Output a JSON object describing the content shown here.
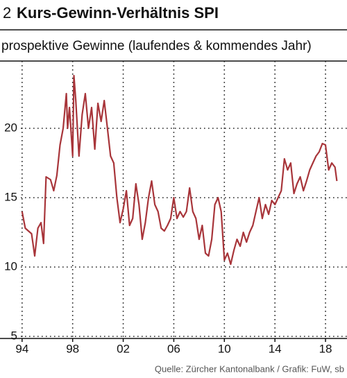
{
  "chart_data": {
    "type": "line",
    "number": "2",
    "title": "Kurs-Gewinn-Verhältnis SPI",
    "subtitle": "prospektive Gewinne (laufendes & kommendes Jahr)",
    "source": "Quelle: Zürcher Kantonalbank / Grafik: FuW, sb",
    "xlim": [
      1993.9,
      2019.7
    ],
    "ylim": [
      4.85,
      24.85
    ],
    "xticks": [
      {
        "value": 1994,
        "label": "94"
      },
      {
        "value": 1998,
        "label": "98"
      },
      {
        "value": 2002,
        "label": "02"
      },
      {
        "value": 2006,
        "label": "06"
      },
      {
        "value": 2010,
        "label": "10"
      },
      {
        "value": 2014,
        "label": "14"
      },
      {
        "value": 2018,
        "label": "18"
      }
    ],
    "yticks": [
      5,
      10,
      15,
      20
    ],
    "grid": true,
    "series": [
      {
        "color": "#a8353a",
        "x": [
          1994.0,
          1994.25,
          1994.5,
          1994.75,
          1995.0,
          1995.25,
          1995.5,
          1995.7,
          1995.9,
          1996.25,
          1996.5,
          1996.75,
          1997.0,
          1997.25,
          1997.5,
          1997.6,
          1997.75,
          1998.0,
          1998.1,
          1998.25,
          1998.5,
          1998.75,
          1999.0,
          1999.25,
          1999.5,
          1999.75,
          2000.0,
          2000.25,
          2000.5,
          2000.75,
          2001.0,
          2001.25,
          2001.5,
          2001.75,
          2002.0,
          2002.25,
          2002.5,
          2002.75,
          2003.0,
          2003.25,
          2003.5,
          2003.75,
          2004.0,
          2004.25,
          2004.5,
          2004.75,
          2005.0,
          2005.25,
          2005.5,
          2005.75,
          2006.0,
          2006.25,
          2006.5,
          2006.75,
          2007.0,
          2007.25,
          2007.5,
          2007.75,
          2008.0,
          2008.25,
          2008.5,
          2008.75,
          2009.0,
          2009.25,
          2009.5,
          2009.75,
          2010.0,
          2010.25,
          2010.5,
          2010.75,
          2011.0,
          2011.25,
          2011.5,
          2011.75,
          2012.0,
          2012.25,
          2012.5,
          2012.75,
          2013.0,
          2013.25,
          2013.5,
          2013.75,
          2014.0,
          2014.25,
          2014.5,
          2014.75,
          2015.0,
          2015.25,
          2015.5,
          2015.75,
          2016.0,
          2016.25,
          2016.5,
          2016.75,
          2017.0,
          2017.25,
          2017.5,
          2017.75,
          2018.0,
          2018.25,
          2018.5,
          2018.75,
          2018.9
        ],
        "values": [
          14,
          12.8,
          12.6,
          12.4,
          10.8,
          12.8,
          13.2,
          11.7,
          16.5,
          16.3,
          15.5,
          16.6,
          18.8,
          20,
          22.5,
          20,
          21.5,
          18,
          23.8,
          22,
          18,
          21,
          22.5,
          20,
          21.5,
          18.5,
          21.8,
          20.5,
          22,
          20,
          18,
          17.5,
          15,
          13.2,
          14.2,
          15.5,
          13,
          13.5,
          16,
          14.5,
          12,
          13.2,
          15,
          16.2,
          14.5,
          14,
          12.8,
          12.6,
          13,
          13.5,
          15,
          13.5,
          14,
          13.6,
          14,
          15.7,
          14,
          13.5,
          12,
          13,
          11,
          10.8,
          12,
          14.5,
          15,
          14,
          10.5,
          11,
          10.2,
          11.2,
          12,
          11.5,
          12.5,
          11.8,
          12.5,
          13,
          14,
          15,
          13.5,
          14.5,
          13.8,
          14.8,
          14.5,
          15,
          15.5,
          17.8,
          17,
          17.5,
          15.3,
          16,
          16.5,
          15.5,
          16.2,
          17,
          17.5,
          18,
          18.3,
          18.9,
          18.8,
          17,
          17.5,
          17.2,
          16.2
        ]
      }
    ]
  }
}
